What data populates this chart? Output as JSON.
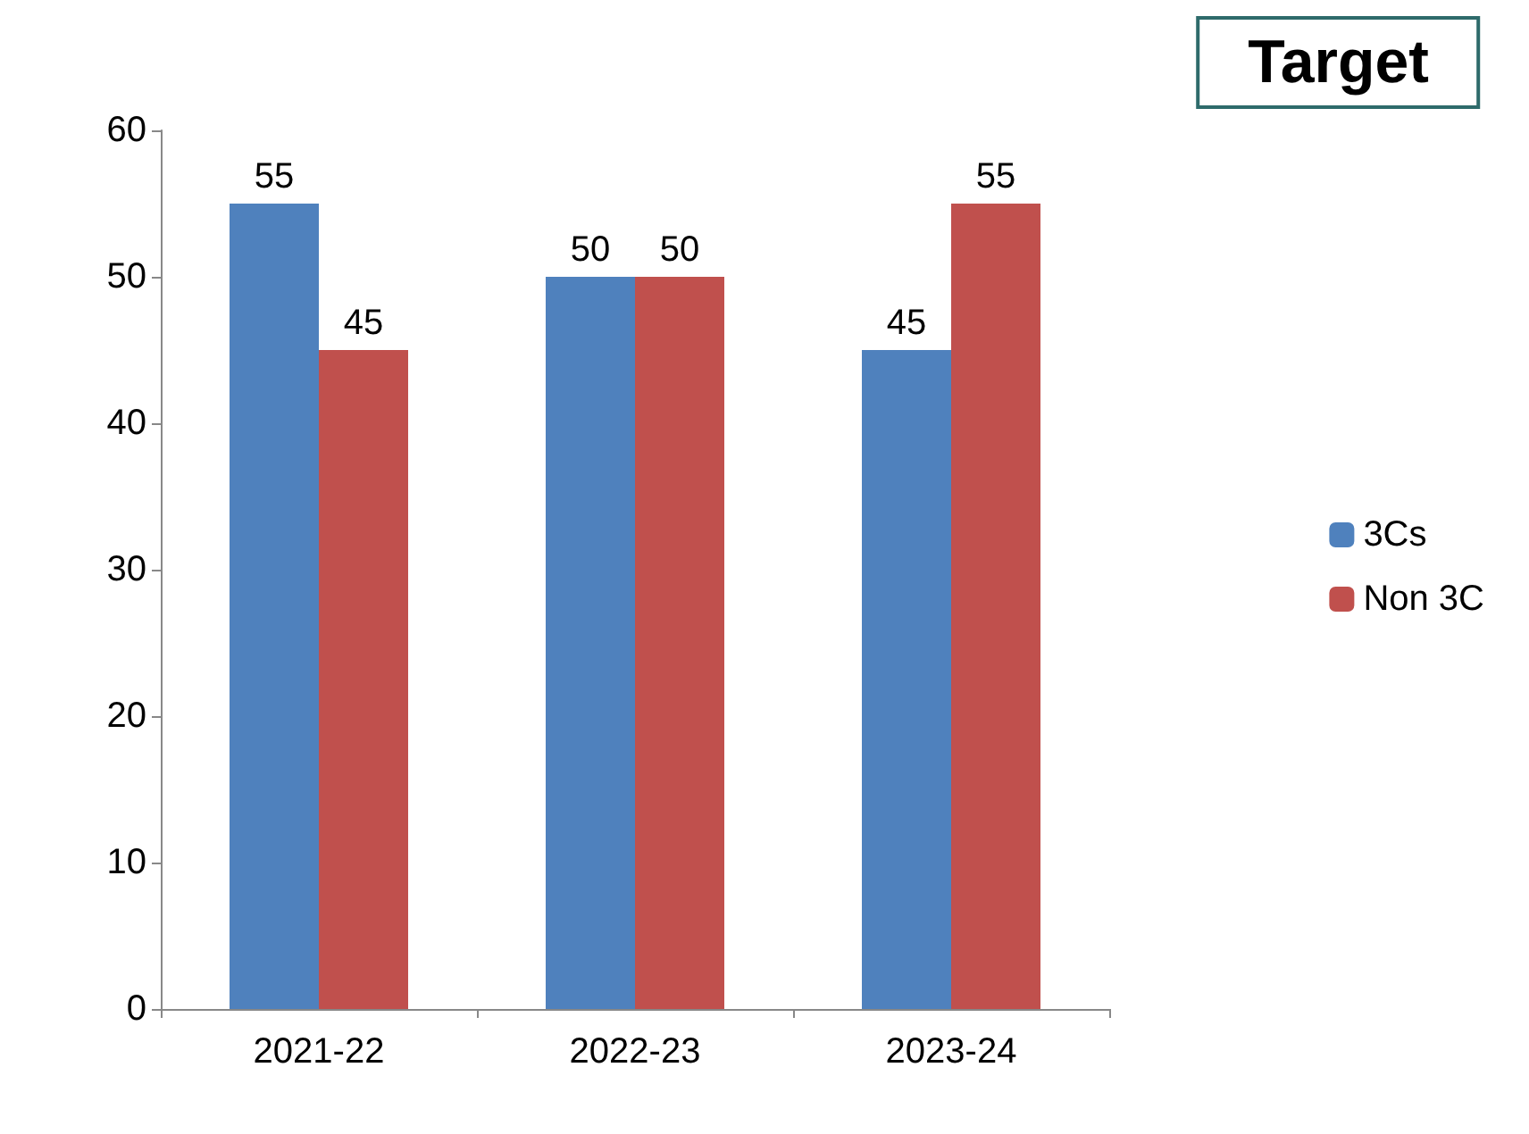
{
  "chart_data": {
    "type": "bar",
    "title": "Target",
    "categories": [
      "2021-22",
      "2022-23",
      "2023-24"
    ],
    "series": [
      {
        "name": "3Cs",
        "color": "#4f81bd",
        "values": [
          55,
          50,
          45
        ]
      },
      {
        "name": "Non 3C",
        "color": "#c0504d",
        "values": [
          45,
          50,
          55
        ]
      }
    ],
    "ylim": [
      0,
      60
    ],
    "yticks": [
      0,
      10,
      20,
      30,
      40,
      50,
      60
    ],
    "grid": false,
    "legend": "right",
    "data_labels": true
  }
}
